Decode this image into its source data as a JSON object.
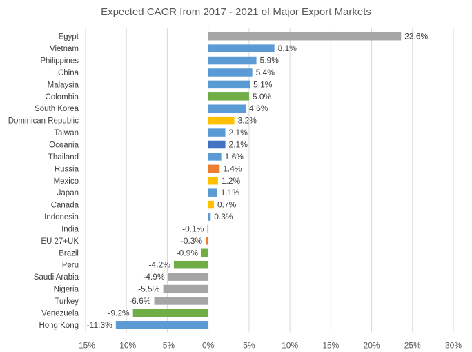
{
  "palette": {
    "blue": "#5b9bd5",
    "gray": "#a5a5a5",
    "green": "#70ad47",
    "gold": "#ffc000",
    "dark_blue": "#4472c4",
    "orange": "#ed7d31"
  },
  "chart_data": {
    "type": "bar",
    "orientation": "horizontal",
    "title": "Expected CAGR from 2017 - 2021 of Major Export Markets",
    "xlabel": "",
    "ylabel": "",
    "xlim": [
      -15,
      30
    ],
    "xticks": [
      -15,
      -10,
      -5,
      0,
      5,
      10,
      15,
      20,
      25,
      30
    ],
    "tick_labels": [
      "-15%",
      "-10%",
      "-5%",
      "0%",
      "5%",
      "10%",
      "15%",
      "20%",
      "25%",
      "30%"
    ],
    "grid": "vertical",
    "legend": "none",
    "categories": [
      "Egypt",
      "Vietnam",
      "Philippines",
      "China",
      "Malaysia",
      "Colombia",
      "South Korea",
      "Dominican Republic",
      "Taiwan",
      "Oceania",
      "Thailand",
      "Russia",
      "Mexico",
      "Japan",
      "Canada",
      "Indonesia",
      "India",
      "EU 27+UK",
      "Brazil",
      "Peru",
      "Saudi Arabia",
      "Nigeria",
      "Turkey",
      "Venezuela",
      "Hong Kong"
    ],
    "values": [
      23.6,
      8.1,
      5.9,
      5.4,
      5.1,
      5.0,
      4.6,
      3.2,
      2.1,
      2.1,
      1.6,
      1.4,
      1.2,
      1.1,
      0.7,
      0.3,
      -0.1,
      -0.3,
      -0.9,
      -4.2,
      -4.9,
      -5.5,
      -6.6,
      -9.2,
      -11.3
    ],
    "value_labels": [
      "23.6%",
      "8.1%",
      "5.9%",
      "5.4%",
      "5.1%",
      "5.0%",
      "4.6%",
      "3.2%",
      "2.1%",
      "2.1%",
      "1.6%",
      "1.4%",
      "1.2%",
      "1.1%",
      "0.7%",
      "0.3%",
      "-0.1%",
      "-0.3%",
      "",
      "-4.2%",
      "-4.9%",
      "-5.5%",
      "-6.6%",
      "-9.2%",
      "-11.3%"
    ],
    "colors": [
      "gray",
      "blue",
      "blue",
      "blue",
      "blue",
      "green",
      "blue",
      "gold",
      "blue",
      "dark_blue",
      "blue",
      "orange",
      "gold",
      "blue",
      "gold",
      "blue",
      "blue",
      "orange",
      "green",
      "green",
      "gray",
      "gray",
      "gray",
      "green",
      "blue"
    ],
    "extra_labels": [
      "-0.9%"
    ]
  }
}
